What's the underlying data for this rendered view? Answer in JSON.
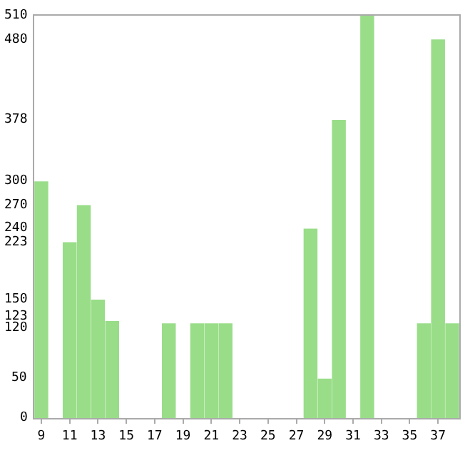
{
  "chart_data": {
    "type": "bar",
    "categories": [
      "9",
      null,
      "11",
      null,
      "13",
      null,
      "15",
      null,
      "17",
      null,
      "19",
      null,
      "21",
      null,
      "23",
      null,
      "25",
      null,
      "27",
      null,
      "29",
      null,
      "31",
      null,
      "33",
      null,
      "35",
      null,
      "37",
      null
    ],
    "values": [
      300,
      0,
      223,
      270,
      150,
      123,
      0,
      0,
      0,
      120,
      0,
      120,
      120,
      120,
      0,
      0,
      0,
      0,
      0,
      240,
      50,
      378,
      0,
      510,
      0,
      0,
      0,
      120,
      480,
      120
    ],
    "color": "#99dd88",
    "ylim": [
      0,
      510
    ],
    "yticks": [
      0,
      50,
      120,
      123,
      150,
      223,
      240,
      270,
      300,
      378,
      480,
      510
    ],
    "legend": false
  }
}
